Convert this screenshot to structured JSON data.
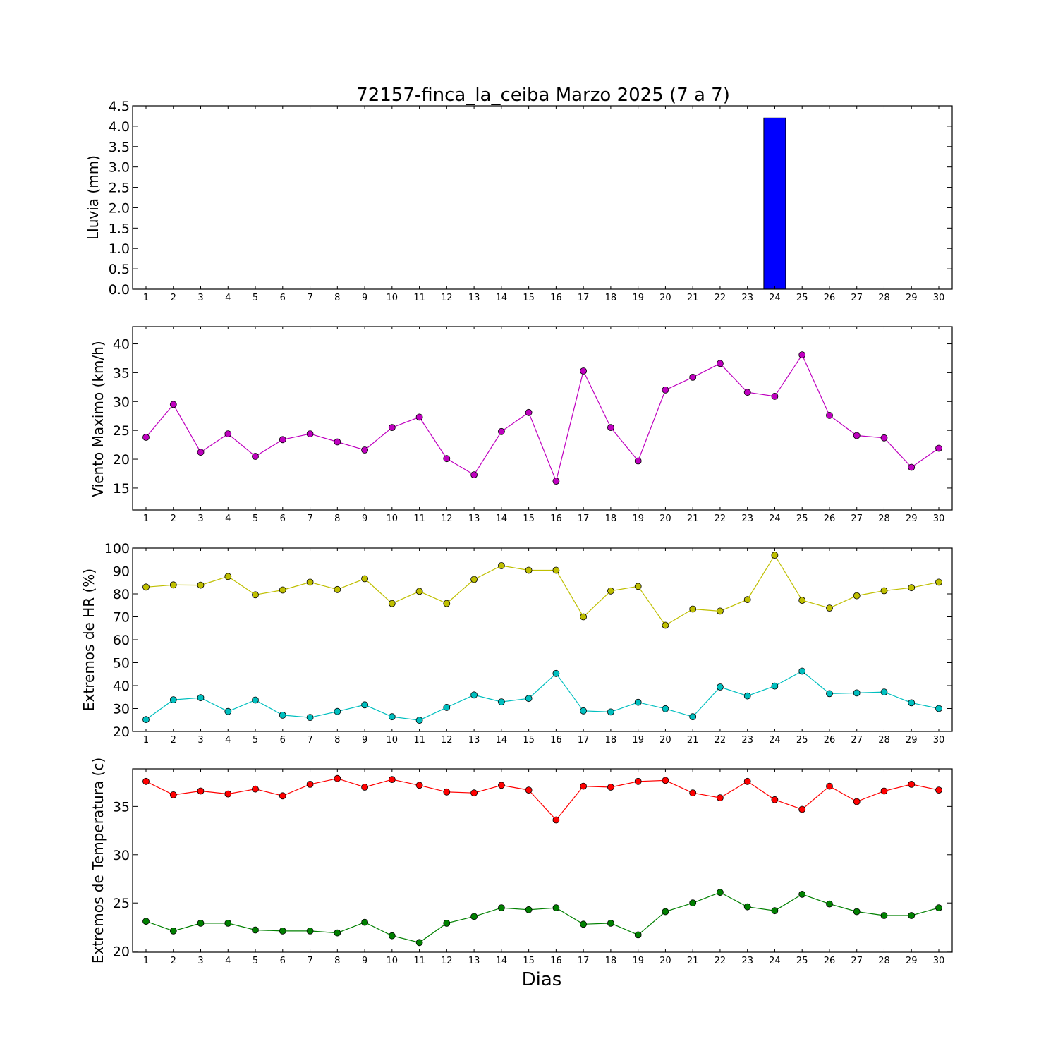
{
  "chart_data": [
    {
      "type": "bar",
      "title": "72157-finca_la_ceiba Marzo 2025  (7 a 7)",
      "ylabel": "Lluvia (mm)",
      "xlabel": "",
      "ylim": [
        0,
        4.5
      ],
      "yticks": [
        "0.0",
        "0.5",
        "1.0",
        "1.5",
        "2.0",
        "2.5",
        "3.0",
        "3.5",
        "4.0",
        "4.5"
      ],
      "categories": [
        1,
        2,
        3,
        4,
        5,
        6,
        7,
        8,
        9,
        10,
        11,
        12,
        13,
        14,
        15,
        16,
        17,
        18,
        19,
        20,
        21,
        22,
        23,
        24,
        25,
        26,
        27,
        28,
        29,
        30
      ],
      "series": [
        {
          "color": "#0000ff",
          "values": [
            0,
            0,
            0,
            0,
            0,
            0,
            0,
            0,
            0,
            0,
            0,
            0,
            0,
            0,
            0,
            0,
            0,
            0,
            0,
            0,
            0,
            0,
            0,
            4.2,
            0,
            0,
            0,
            0,
            0,
            0
          ]
        }
      ]
    },
    {
      "type": "line",
      "ylabel": "Viento Maximo (km/h)",
      "xlabel": "",
      "ylim": [
        11.2,
        43
      ],
      "yticks": [
        "15",
        "20",
        "25",
        "30",
        "35",
        "40"
      ],
      "categories": [
        1,
        2,
        3,
        4,
        5,
        6,
        7,
        8,
        9,
        10,
        11,
        12,
        13,
        14,
        15,
        16,
        17,
        18,
        19,
        20,
        21,
        22,
        23,
        24,
        25,
        26,
        27,
        28,
        29,
        30
      ],
      "series": [
        {
          "color": "#bf00bf",
          "values": [
            23.8,
            29.5,
            21.2,
            24.4,
            20.5,
            23.4,
            24.4,
            23.0,
            21.6,
            25.5,
            27.3,
            20.1,
            17.3,
            24.8,
            28.1,
            16.2,
            35.3,
            25.5,
            19.7,
            32.0,
            34.2,
            36.6,
            31.6,
            30.9,
            38.1,
            27.6,
            24.1,
            23.7,
            18.6,
            21.9
          ]
        }
      ]
    },
    {
      "type": "line",
      "ylabel": "Extremos de HR (%)",
      "xlabel": "",
      "ylim": [
        20,
        100
      ],
      "yticks": [
        "20",
        "30",
        "40",
        "50",
        "60",
        "70",
        "80",
        "90",
        "100"
      ],
      "categories": [
        1,
        2,
        3,
        4,
        5,
        6,
        7,
        8,
        9,
        10,
        11,
        12,
        13,
        14,
        15,
        16,
        17,
        18,
        19,
        20,
        21,
        22,
        23,
        24,
        25,
        26,
        27,
        28,
        29,
        30
      ],
      "series": [
        {
          "color": "#bfbf00",
          "values": [
            83.0,
            83.9,
            83.8,
            87.6,
            79.6,
            81.7,
            85.1,
            81.9,
            86.6,
            75.8,
            81.1,
            75.8,
            86.3,
            92.3,
            90.3,
            90.3,
            70.0,
            81.3,
            83.3,
            66.3,
            73.4,
            72.5,
            77.5,
            96.9,
            77.2,
            73.8,
            79.2,
            81.4,
            82.7,
            85.1
          ]
        },
        {
          "color": "#00bfbf",
          "values": [
            25.2,
            33.8,
            34.7,
            28.7,
            33.7,
            27.1,
            26.1,
            28.7,
            31.6,
            26.4,
            24.9,
            30.5,
            35.9,
            32.9,
            34.4,
            45.3,
            29.0,
            28.5,
            32.7,
            29.9,
            26.4,
            39.4,
            35.5,
            39.8,
            46.3,
            36.5,
            36.8,
            37.2,
            32.5,
            30.0
          ]
        }
      ]
    },
    {
      "type": "line",
      "ylabel": "Extremos de Temperatura (c)",
      "xlabel": "Dias",
      "ylim": [
        19.9,
        38.9
      ],
      "yticks": [
        "20",
        "25",
        "30",
        "35"
      ],
      "categories": [
        1,
        2,
        3,
        4,
        5,
        6,
        7,
        8,
        9,
        10,
        11,
        12,
        13,
        14,
        15,
        16,
        17,
        18,
        19,
        20,
        21,
        22,
        23,
        24,
        25,
        26,
        27,
        28,
        29,
        30
      ],
      "series": [
        {
          "color": "#ff0000",
          "values": [
            37.6,
            36.2,
            36.6,
            36.3,
            36.8,
            36.1,
            37.3,
            37.9,
            37.0,
            37.8,
            37.2,
            36.5,
            36.4,
            37.2,
            36.7,
            33.6,
            37.1,
            37.0,
            37.6,
            37.7,
            36.4,
            35.9,
            37.6,
            35.7,
            34.7,
            37.1,
            35.5,
            36.6,
            37.3,
            36.7
          ]
        },
        {
          "color": "#008000",
          "values": [
            23.1,
            22.1,
            22.9,
            22.9,
            22.2,
            22.1,
            22.1,
            21.9,
            23.0,
            21.6,
            20.9,
            22.9,
            23.6,
            24.5,
            24.3,
            24.5,
            22.8,
            22.9,
            21.7,
            24.1,
            25.0,
            26.1,
            24.6,
            24.2,
            25.9,
            24.9,
            24.1,
            23.7,
            23.7,
            24.5
          ]
        }
      ]
    }
  ]
}
